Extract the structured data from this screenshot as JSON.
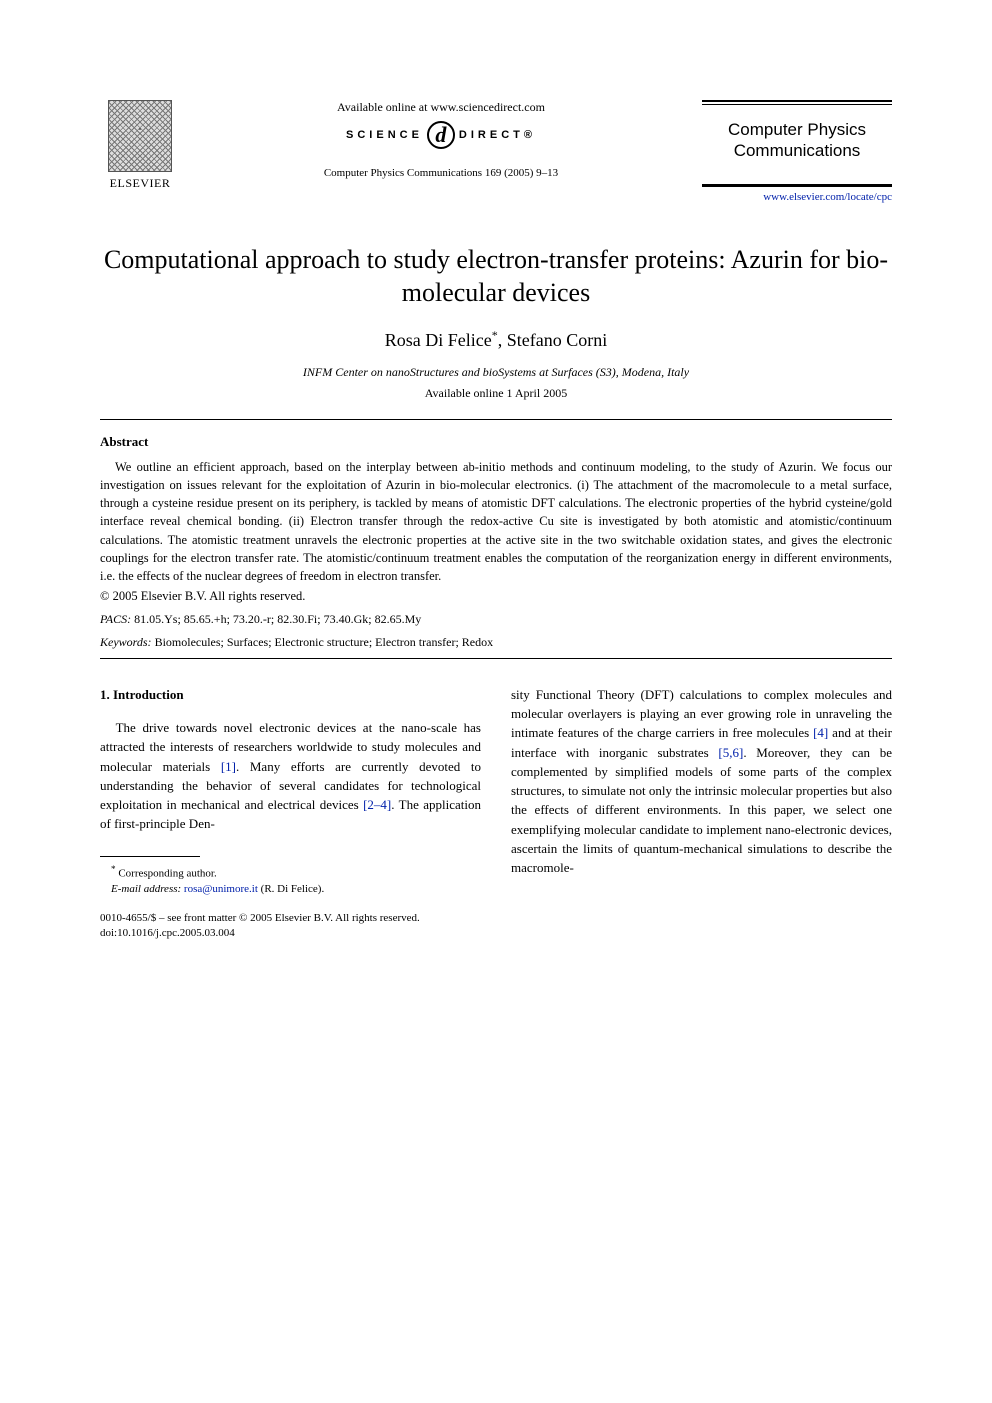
{
  "header": {
    "publisher_name": "ELSEVIER",
    "available_online": "Available online at www.sciencedirect.com",
    "sd_left": "SCIENCE",
    "sd_d": "d",
    "sd_right": "DIRECT®",
    "citation": "Computer Physics Communications 169 (2005) 9–13",
    "journal_title_l1": "Computer Physics",
    "journal_title_l2": "Communications",
    "journal_link": "www.elsevier.com/locate/cpc"
  },
  "article": {
    "title": "Computational approach to study electron-transfer proteins: Azurin for bio-molecular devices",
    "authors_html": "Rosa Di Felice *, Stefano Corni",
    "author1": "Rosa Di Felice",
    "author_sep": ", ",
    "author2": "Stefano Corni",
    "corr_mark": "*",
    "affiliation": "INFM Center on nanoStructures and bioSystems at Surfaces (S3), Modena, Italy",
    "available_date": "Available online 1 April 2005"
  },
  "abstract": {
    "heading": "Abstract",
    "body": "We outline an efficient approach, based on the interplay between ab-initio methods and continuum modeling, to the study of Azurin. We focus our investigation on issues relevant for the exploitation of Azurin in bio-molecular electronics. (i) The attachment of the macromolecule to a metal surface, through a cysteine residue present on its periphery, is tackled by means of atomistic DFT calculations. The electronic properties of the hybrid cysteine/gold interface reveal chemical bonding. (ii) Electron transfer through the redox-active Cu site is investigated by both atomistic and atomistic/continuum calculations. The atomistic treatment unravels the electronic properties at the active site in the two switchable oxidation states, and gives the electronic couplings for the electron transfer rate. The atomistic/continuum treatment enables the computation of the reorganization energy in different environments, i.e. the effects of the nuclear degrees of freedom in electron transfer.",
    "copyright": "© 2005 Elsevier B.V. All rights reserved.",
    "pacs_label": "PACS:",
    "pacs": "81.05.Ys; 85.65.+h; 73.20.-r; 82.30.Fi; 73.40.Gk; 82.65.My",
    "keywords_label": "Keywords:",
    "keywords": "Biomolecules; Surfaces; Electronic structure; Electron transfer; Redox"
  },
  "body": {
    "section_heading": "1.  Introduction",
    "left_p1a": "The drive towards novel electronic devices at the nano-scale has attracted the interests of researchers worldwide to study molecules and molecular materials ",
    "ref1": "[1]",
    "left_p1b": ". Many efforts are currently devoted to understanding the behavior of several candidates for technological exploitation in mechanical and electrical devices ",
    "ref24": "[2–4]",
    "left_p1c": ". The application of first-principle Den-",
    "right_p1a": "sity Functional Theory (DFT) calculations to complex molecules and molecular overlayers is playing an ever growing role in unraveling the intimate features of the charge carriers in free molecules ",
    "ref4": "[4]",
    "right_p1b": " and at their interface with inorganic substrates ",
    "ref56": "[5,6]",
    "right_p1c": ". Moreover, they can be complemented by simplified models of some parts of the complex structures, to simulate not only the intrinsic molecular properties but also the effects of different environments. In this paper, we select one exemplifying molecular candidate to implement nano-electronic devices, ascertain the limits of quantum-mechanical simulations to describe the macromole-"
  },
  "footnotes": {
    "corr": "Corresponding author.",
    "email_label": "E-mail address:",
    "email": "rosa@unimore.it",
    "email_paren": "(R. Di Felice)."
  },
  "footer": {
    "line1": "0010-4655/$ – see front matter © 2005 Elsevier B.V. All rights reserved.",
    "doi": "doi:10.1016/j.cpc.2005.03.004"
  },
  "colors": {
    "link": "#0020aa",
    "text": "#000000",
    "bg": "#ffffff"
  }
}
